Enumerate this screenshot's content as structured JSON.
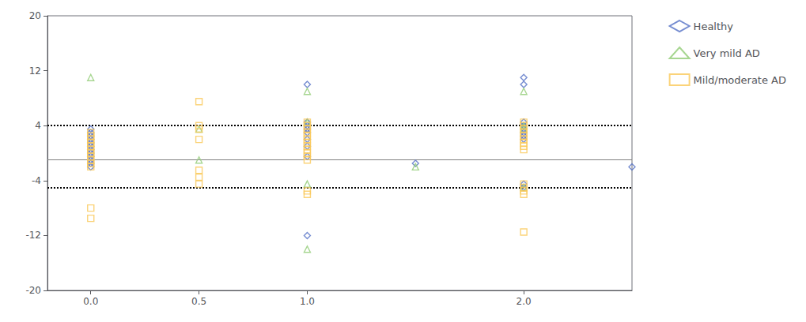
{
  "chart_data": {
    "type": "scatter",
    "xlim": [
      -0.2,
      2.5
    ],
    "ylim": [
      -20,
      20
    ],
    "xticks": [
      {
        "value": 0.0,
        "label": "0.0"
      },
      0.5,
      {
        "value": 1.0,
        "label": "1.0"
      },
      {
        "value": 2.0,
        "label": "2.0"
      }
    ],
    "yticks": [
      -20,
      -12,
      -4,
      4,
      12,
      20
    ],
    "grid": false,
    "legend": "right",
    "hlines": [
      {
        "value": -1.0,
        "color": "gray",
        "line_style": "solid"
      },
      {
        "value": 4.0,
        "color": "black",
        "line_style": "dotted"
      },
      {
        "value": -5.0,
        "color": "black",
        "line_style": "dotted"
      }
    ],
    "series": [
      {
        "name": "Healthy",
        "marker": "diamond",
        "x": [
          0.0,
          0.0,
          0.0,
          0.0,
          0.0,
          0.0,
          0.0,
          0.0,
          0.0,
          0.0,
          0.0,
          0.0,
          1.0,
          1.0,
          1.0,
          1.0,
          1.0,
          1.0,
          1.0,
          1.0,
          1.0,
          1.5,
          2.0,
          2.0,
          2.0,
          2.0,
          2.0,
          2.0,
          2.0,
          2.0,
          2.0,
          2.0,
          2.5
        ],
        "y": [
          3.5,
          3.0,
          2.5,
          2.0,
          1.5,
          1.0,
          0.5,
          0.0,
          -0.5,
          -1.0,
          -1.5,
          -2.0,
          10.0,
          4.5,
          4.0,
          3.5,
          3.0,
          2.0,
          1.0,
          -0.5,
          -12.0,
          -1.5,
          11.0,
          10.0,
          4.5,
          4.0,
          3.5,
          3.0,
          2.5,
          2.0,
          -4.5,
          -5.0,
          -2.0
        ]
      },
      {
        "name": "Very mild AD",
        "marker": "triangle",
        "x": [
          0.0,
          0.5,
          0.5,
          1.0,
          1.0,
          1.0,
          1.0,
          1.5,
          2.0,
          2.0,
          2.0,
          2.0
        ],
        "y": [
          11.0,
          3.5,
          -1.0,
          9.0,
          4.5,
          -4.5,
          -14.0,
          -2.0,
          9.0,
          4.0,
          3.5,
          -5.0
        ]
      },
      {
        "name": "Mild/moderate AD",
        "marker": "square",
        "x": [
          0.0,
          0.0,
          0.0,
          0.0,
          0.0,
          0.0,
          0.0,
          0.0,
          0.0,
          0.0,
          0.0,
          0.0,
          0.0,
          0.5,
          0.5,
          0.5,
          0.5,
          0.5,
          0.5,
          0.5,
          1.0,
          1.0,
          1.0,
          1.0,
          1.0,
          1.0,
          1.0,
          1.0,
          1.0,
          1.0,
          1.0,
          1.0,
          1.0,
          1.0,
          2.0,
          2.0,
          2.0,
          2.0,
          2.0,
          2.0,
          2.0,
          2.0,
          2.0,
          2.0,
          2.0,
          2.0,
          2.0,
          2.0
        ],
        "y": [
          3.0,
          2.5,
          2.0,
          1.5,
          1.0,
          0.5,
          0.0,
          -0.5,
          -1.0,
          -1.5,
          -2.0,
          -8.0,
          -9.5,
          7.5,
          4.0,
          3.5,
          2.0,
          -2.5,
          -3.5,
          -4.5,
          4.5,
          4.0,
          3.5,
          3.0,
          2.5,
          2.0,
          1.5,
          1.0,
          0.5,
          0.0,
          -0.5,
          -1.0,
          -5.5,
          -6.0,
          4.5,
          4.0,
          3.5,
          3.0,
          2.5,
          2.0,
          1.5,
          1.0,
          0.5,
          -4.5,
          -5.0,
          -5.5,
          -6.0,
          -11.5
        ]
      }
    ]
  }
}
